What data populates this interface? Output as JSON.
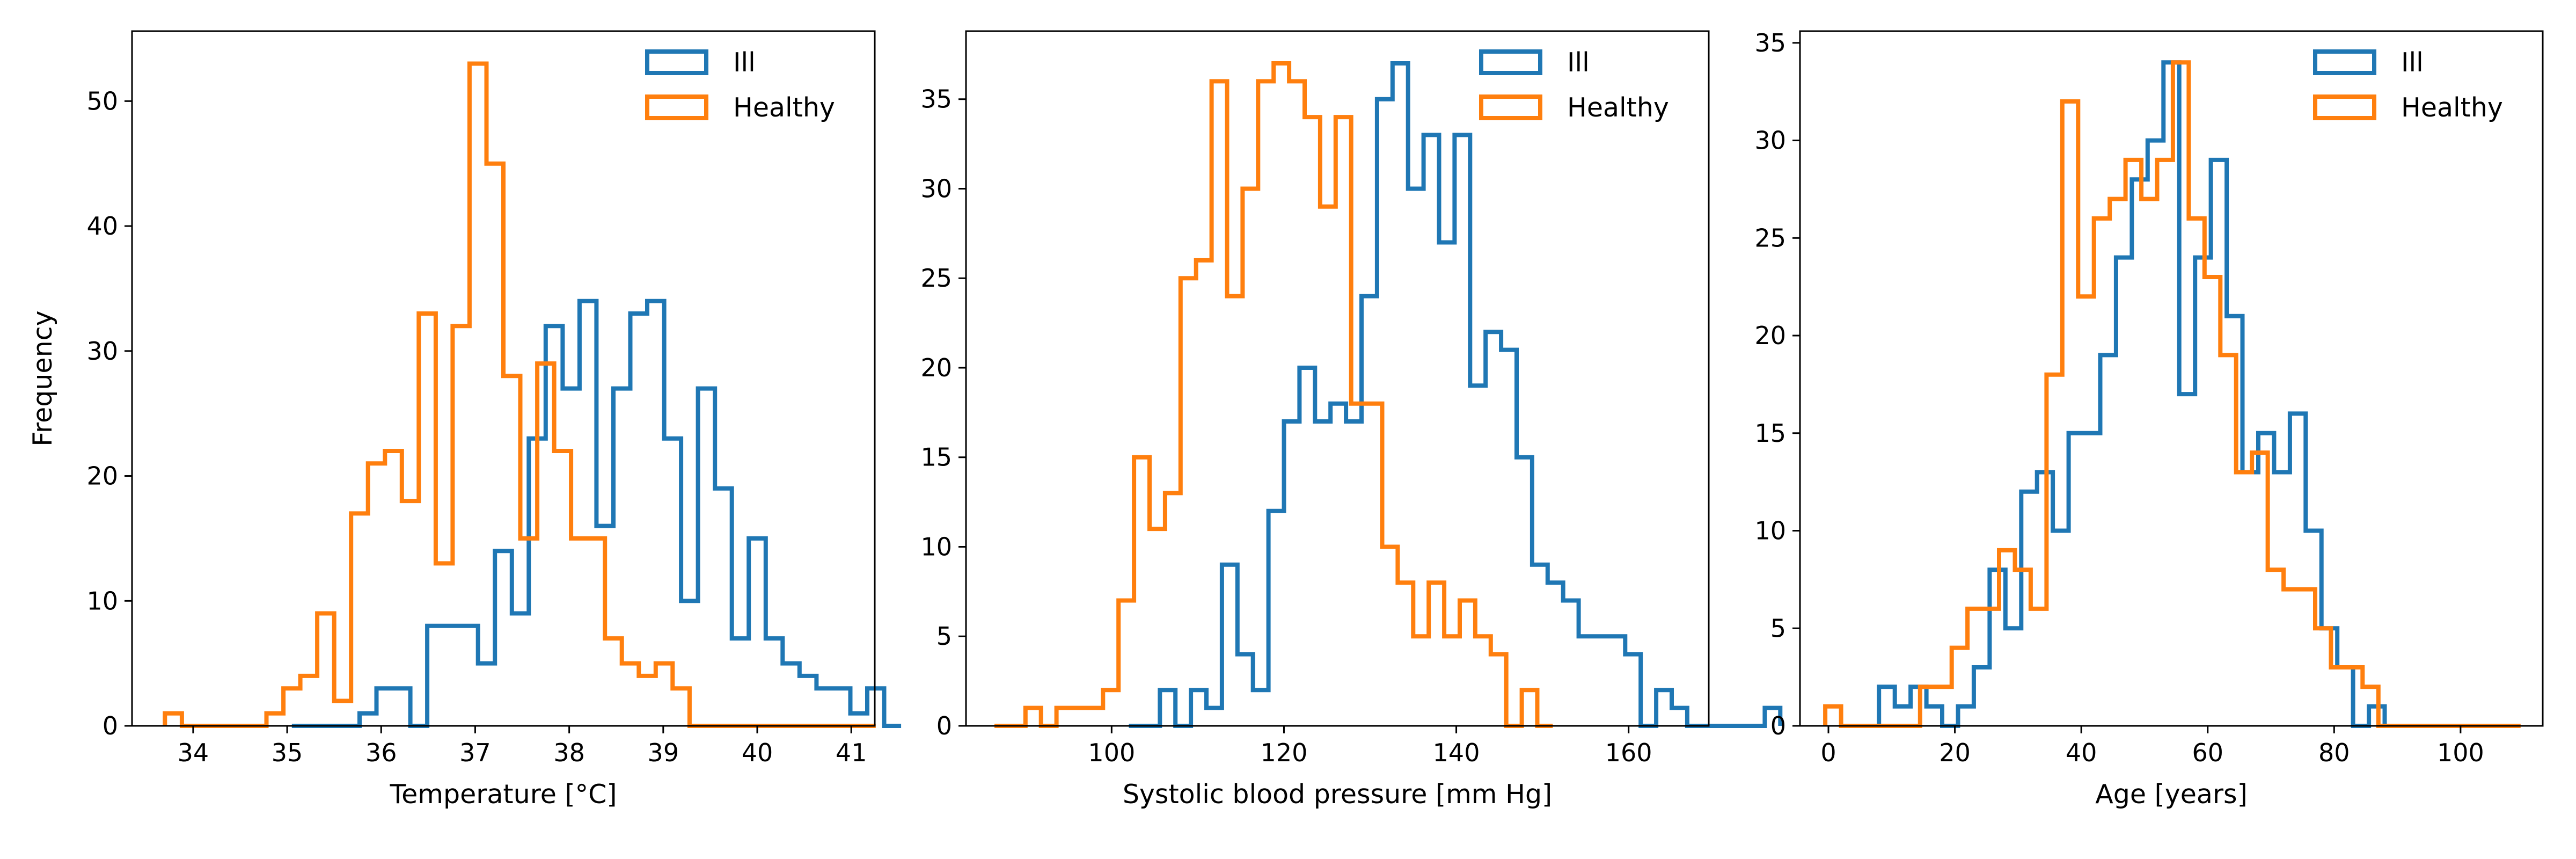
{
  "colors": {
    "ill": "#1f77b4",
    "healthy": "#ff7f0e",
    "axes": "#000000",
    "background": "#ffffff"
  },
  "chart_data": [
    {
      "type": "histogram",
      "xlabel": "Temperature [°C]",
      "ylabel": "Frequency",
      "xlim": [
        33.35,
        41.25
      ],
      "ylim": [
        0,
        55.6
      ],
      "xticks": [
        34,
        35,
        36,
        37,
        38,
        39,
        40,
        41
      ],
      "yticks": [
        0,
        10,
        20,
        30,
        40,
        50
      ],
      "legend": {
        "position": "top-right",
        "entries": [
          "Ill",
          "Healthy"
        ]
      },
      "grid": false,
      "series": [
        {
          "name": "Ill",
          "color": "#1f77b4",
          "x_start": 35.05,
          "bin_width": 0.18,
          "values": [
            0,
            0,
            0,
            0,
            1,
            3,
            3,
            0,
            8,
            8,
            8,
            5,
            14,
            9,
            23,
            32,
            27,
            34,
            16,
            27,
            33,
            34,
            23,
            10,
            27,
            19,
            7,
            15,
            7,
            5,
            4,
            3,
            3,
            1,
            3,
            0
          ]
        },
        {
          "name": "Healthy",
          "color": "#ff7f0e",
          "x_start": 33.7,
          "bin_width": 0.18,
          "values": [
            1,
            0,
            0,
            0,
            0,
            0,
            1,
            3,
            4,
            9,
            2,
            17,
            21,
            22,
            18,
            33,
            13,
            32,
            53,
            45,
            28,
            15,
            29,
            22,
            15,
            15,
            7,
            5,
            4,
            5,
            3,
            0,
            0,
            0,
            0,
            0,
            0,
            0,
            0,
            0,
            0,
            0
          ]
        }
      ]
    },
    {
      "type": "histogram",
      "xlabel": "Systolic blood pressure [mm Hg]",
      "ylabel": "",
      "xlim": [
        83.1,
        169.3
      ],
      "ylim": [
        0,
        38.8
      ],
      "xticks": [
        100,
        120,
        140,
        160
      ],
      "yticks": [
        0,
        5,
        10,
        15,
        20,
        25,
        30,
        35
      ],
      "legend": {
        "position": "top-right",
        "entries": [
          "Ill",
          "Healthy"
        ]
      },
      "grid": false,
      "series": [
        {
          "name": "Ill",
          "color": "#1f77b4",
          "x_start": 102.0,
          "bin_width": 1.8,
          "values": [
            0,
            0,
            2,
            0,
            2,
            1,
            9,
            4,
            2,
            12,
            17,
            20,
            17,
            18,
            17,
            24,
            35,
            37,
            30,
            33,
            27,
            33,
            19,
            22,
            21,
            15,
            9,
            8,
            7,
            5,
            5,
            5,
            4,
            0,
            2,
            1,
            0,
            0,
            0,
            0,
            0,
            1
          ]
        },
        {
          "name": "Healthy",
          "color": "#ff7f0e",
          "x_start": 86.4,
          "bin_width": 1.8,
          "values": [
            0,
            0,
            1,
            0,
            1,
            1,
            1,
            2,
            7,
            15,
            11,
            13,
            25,
            26,
            36,
            24,
            30,
            36,
            37,
            36,
            34,
            29,
            34,
            18,
            18,
            10,
            8,
            5,
            8,
            5,
            7,
            5,
            4,
            0,
            2,
            0
          ]
        }
      ]
    },
    {
      "type": "histogram",
      "xlabel": "Age [years]",
      "ylabel": "",
      "xlim": [
        -4.5,
        113.0
      ],
      "ylim": [
        0,
        35.6
      ],
      "xticks": [
        0,
        20,
        40,
        60,
        80,
        100
      ],
      "yticks": [
        0,
        5,
        10,
        15,
        20,
        25,
        30,
        35
      ],
      "legend": {
        "position": "top-right",
        "entries": [
          "Ill",
          "Healthy"
        ]
      },
      "grid": false,
      "series": [
        {
          "name": "Ill",
          "color": "#1f77b4",
          "x_start": 5.5,
          "bin_width": 2.5,
          "values": [
            0,
            2,
            1,
            2,
            1,
            0,
            1,
            3,
            8,
            5,
            12,
            13,
            10,
            15,
            15,
            19,
            24,
            28,
            30,
            34,
            17,
            24,
            29,
            21,
            13,
            15,
            13,
            16,
            10,
            5,
            3,
            0,
            1,
            0
          ]
        },
        {
          "name": "Healthy",
          "color": "#ff7f0e",
          "x_start": -0.5,
          "bin_width": 2.5,
          "values": [
            1,
            0,
            0,
            0,
            0,
            0,
            2,
            2,
            4,
            6,
            6,
            9,
            8,
            6,
            18,
            32,
            22,
            26,
            27,
            29,
            27,
            29,
            34,
            26,
            23,
            19,
            13,
            14,
            8,
            7,
            7,
            5,
            3,
            3,
            2,
            0,
            0,
            0,
            0,
            0,
            0,
            0,
            0,
            0
          ]
        }
      ]
    }
  ]
}
